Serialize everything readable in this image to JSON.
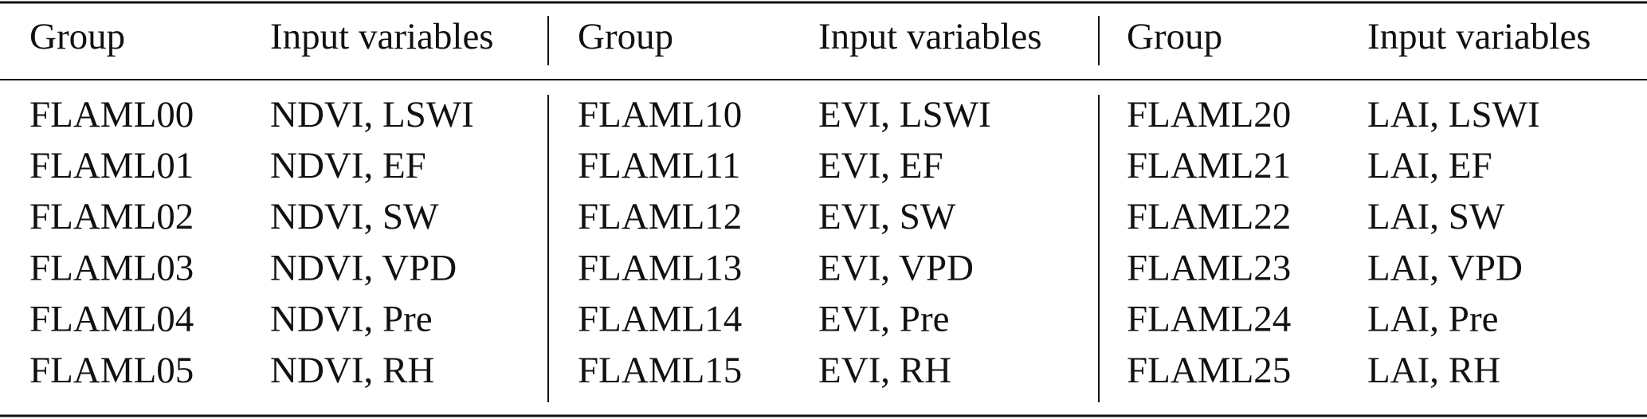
{
  "table": {
    "header": [
      "Group",
      "Input variables",
      "Group",
      "Input variables",
      "Group",
      "Input variables"
    ],
    "rows": [
      [
        "FLAML00",
        "NDVI, LSWI",
        "FLAML10",
        "EVI, LSWI",
        "FLAML20",
        "LAI, LSWI"
      ],
      [
        "FLAML01",
        "NDVI, EF",
        "FLAML11",
        "EVI, EF",
        "FLAML21",
        "LAI, EF"
      ],
      [
        "FLAML02",
        "NDVI, SW",
        "FLAML12",
        "EVI, SW",
        "FLAML22",
        "LAI, SW"
      ],
      [
        "FLAML03",
        "NDVI, VPD",
        "FLAML13",
        "EVI, VPD",
        "FLAML23",
        "LAI, VPD"
      ],
      [
        "FLAML04",
        "NDVI, Pre",
        "FLAML14",
        "EVI, Pre",
        "FLAML24",
        "LAI, Pre"
      ],
      [
        "FLAML05",
        "NDVI, RH",
        "FLAML15",
        "EVI, RH",
        "FLAML25",
        "LAI, RH"
      ]
    ]
  }
}
